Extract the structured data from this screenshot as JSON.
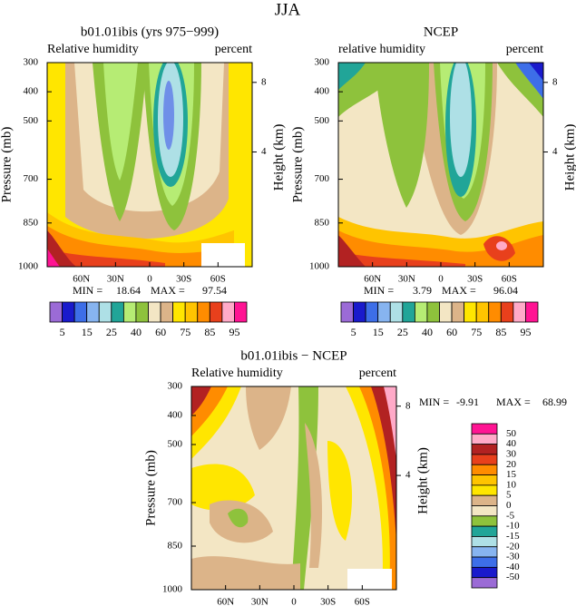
{
  "title": "JJA",
  "panels": [
    {
      "title": "b01.01ibis (yrs 975−999)",
      "left_string": "Relative humidity",
      "right_string": "percent",
      "y_label": "Pressure (mb)",
      "y2_label": "Height (km)",
      "ylim": [
        300,
        1000
      ],
      "yticks": [
        300,
        400,
        500,
        700,
        850,
        1000
      ],
      "y2ticks": [
        8,
        4
      ],
      "xlim": [
        90,
        -90
      ],
      "xticks": [
        {
          "value": 60,
          "label": "60N"
        },
        {
          "value": 30,
          "label": "30N"
        },
        0,
        {
          "value": -30,
          "label": "30S"
        },
        {
          "value": -60,
          "label": "60S"
        }
      ],
      "min_label": "MIN =",
      "min": 18.64,
      "max_label": "MAX =",
      "max": 97.54
    },
    {
      "title": "NCEP",
      "left_string": "relative humidity",
      "right_string": "percent",
      "y_label": "Pressure (mb)",
      "y2_label": "Height (km)",
      "ylim": [
        300,
        1000
      ],
      "yticks": [
        300,
        400,
        500,
        700,
        850,
        1000
      ],
      "y2ticks": [
        8,
        4
      ],
      "xlim": [
        90,
        -90
      ],
      "xticks": [
        {
          "value": 60,
          "label": "60N"
        },
        {
          "value": 30,
          "label": "30N"
        },
        0,
        {
          "value": -30,
          "label": "30S"
        },
        {
          "value": -60,
          "label": "60S"
        }
      ],
      "min_label": "MIN =",
      "min": 3.79,
      "max_label": "MAX =",
      "max": 96.04
    },
    {
      "title": "b01.01ibis − NCEP",
      "left_string": "Relative humidity",
      "right_string": "percent",
      "y_label": "Pressure (mb)",
      "y2_label": "Height (km)",
      "ylim": [
        300,
        1000
      ],
      "yticks": [
        300,
        400,
        500,
        700,
        850,
        1000
      ],
      "y2ticks": [
        8,
        4
      ],
      "xlim": [
        90,
        -90
      ],
      "xticks": [
        {
          "value": 60,
          "label": "60N"
        },
        {
          "value": 30,
          "label": "30N"
        },
        0,
        {
          "value": -30,
          "label": "30S"
        },
        {
          "value": -60,
          "label": "60S"
        }
      ],
      "min_label": "MIN =",
      "min": -9.91,
      "max_label": "MAX =",
      "max": 68.99
    }
  ],
  "colorbars": [
    {
      "colors": [
        "#9b6bd6",
        "#1a1acc",
        "#3d6ee8",
        "#87b4f0",
        "#aee0e6",
        "#21a598",
        "#b6ec74",
        "#8ec23c",
        "#f3e6c4",
        "#dcb489",
        "#ffe600",
        "#ffc400",
        "#ff8c00",
        "#e8401c",
        "#ffaac8",
        "#ff1493"
      ],
      "labels": [
        5,
        15,
        25,
        40,
        60,
        75,
        85,
        95
      ]
    },
    {
      "colors": [
        "#9b6bd6",
        "#1a1acc",
        "#3d6ee8",
        "#87b4f0",
        "#aee0e6",
        "#21a598",
        "#b6ec74",
        "#8ec23c",
        "#f3e6c4",
        "#dcb489",
        "#ffe600",
        "#ffc400",
        "#ff8c00",
        "#e8401c",
        "#ffaac8",
        "#ff1493"
      ],
      "labels": [
        5,
        15,
        25,
        40,
        60,
        75,
        85,
        95
      ]
    },
    {
      "colors": [
        "#ff1493",
        "#ffaac8",
        "#b22222",
        "#e8401c",
        "#ff8c00",
        "#ffc400",
        "#ffe600",
        "#dcb489",
        "#f3e6c4",
        "#8ec23c",
        "#21a598",
        "#aee0e6",
        "#87b4f0",
        "#3d6ee8",
        "#1a1acc",
        "#9b6bd6"
      ],
      "labels": [
        50,
        40,
        30,
        20,
        15,
        10,
        5,
        0,
        -5,
        -10,
        -15,
        -20,
        -30,
        -40,
        -50
      ]
    }
  ]
}
